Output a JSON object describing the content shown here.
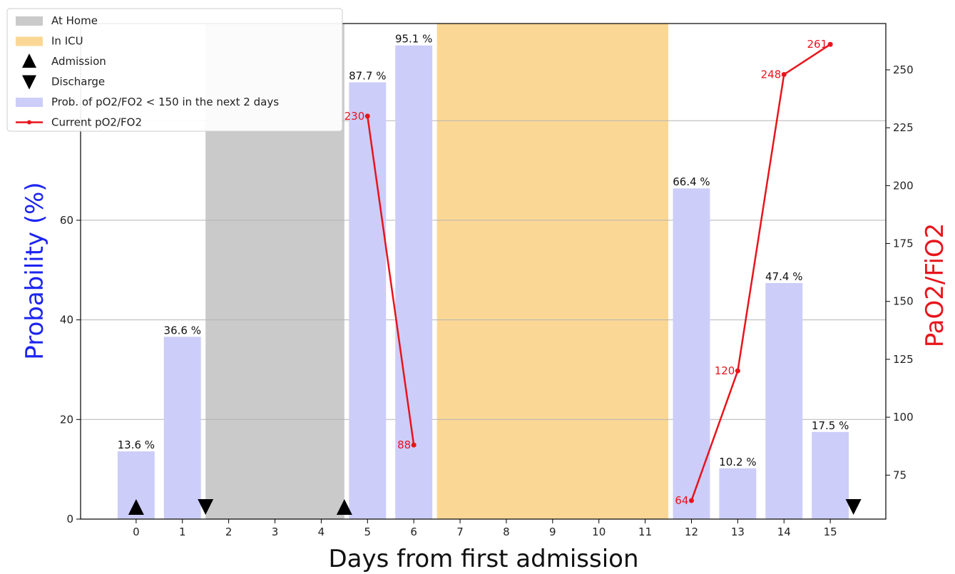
{
  "chart_data": {
    "type": "bar",
    "xlabel": "Days from first admission",
    "ylabel_left": "Probability (%)",
    "ylabel_right": "PaO2/FiO2",
    "x_ticks": [
      0,
      1,
      2,
      3,
      4,
      5,
      6,
      7,
      8,
      9,
      10,
      11,
      12,
      13,
      14,
      15
    ],
    "xlim": [
      -1.2,
      16.2
    ],
    "ylim_left": [
      0,
      99.5
    ],
    "ylim_right": [
      56,
      270
    ],
    "y_ticks_left": [
      0,
      20,
      40,
      60
    ],
    "y_ticks_right": [
      75,
      100,
      125,
      150,
      175,
      200,
      225,
      250
    ],
    "grid": "horizontal",
    "legend_position": "upper-left",
    "colors": {
      "bar": "#cccdf9",
      "home": "#cacaca",
      "icu": "#fbd796",
      "line": "#e8141b",
      "left_label": "#1c24f0",
      "right_label": "#e8141b"
    },
    "series": [
      {
        "name": "Prob. of pO2/FO2 < 150 in the next 2 days",
        "kind": "bar",
        "points": [
          {
            "x": 0,
            "value": 13.6,
            "label": "13.6 %"
          },
          {
            "x": 1,
            "value": 36.6,
            "label": "36.6 %"
          },
          {
            "x": 5,
            "value": 87.7,
            "label": "87.7 %"
          },
          {
            "x": 6,
            "value": 95.1,
            "label": "95.1 %"
          },
          {
            "x": 12,
            "value": 66.4,
            "label": "66.4 %"
          },
          {
            "x": 13,
            "value": 10.2,
            "label": "10.2 %"
          },
          {
            "x": 14,
            "value": 47.4,
            "label": "47.4 %"
          },
          {
            "x": 15,
            "value": 17.5,
            "label": "17.5 %"
          }
        ]
      },
      {
        "name": "Current pO2/FO2",
        "kind": "line",
        "segments": [
          [
            {
              "x": 5,
              "value": 230,
              "label": "230"
            },
            {
              "x": 6,
              "value": 88,
              "label": "88"
            }
          ],
          [
            {
              "x": 12,
              "value": 64,
              "label": "64"
            },
            {
              "x": 13,
              "value": 120,
              "label": "120"
            },
            {
              "x": 14,
              "value": 248,
              "label": "248"
            },
            {
              "x": 15,
              "value": 261,
              "label": "261"
            }
          ]
        ]
      }
    ],
    "spans": [
      {
        "name": "At Home",
        "start": 1.5,
        "end": 4.5
      },
      {
        "name": "In ICU",
        "start": 6.5,
        "end": 11.5
      }
    ],
    "events": [
      {
        "type": "Admission",
        "x": 0
      },
      {
        "type": "Discharge",
        "x": 1.5
      },
      {
        "type": "Admission",
        "x": 4.5
      },
      {
        "type": "Discharge",
        "x": 15.5
      }
    ],
    "legend": [
      {
        "label": "At Home",
        "kind": "span-home"
      },
      {
        "label": "In ICU",
        "kind": "span-icu"
      },
      {
        "label": "Admission",
        "kind": "marker-up"
      },
      {
        "label": "Discharge",
        "kind": "marker-down"
      },
      {
        "label": "Prob. of pO2/FO2 < 150 in the next 2 days",
        "kind": "bar"
      },
      {
        "label": "Current pO2/FO2",
        "kind": "line"
      }
    ]
  }
}
